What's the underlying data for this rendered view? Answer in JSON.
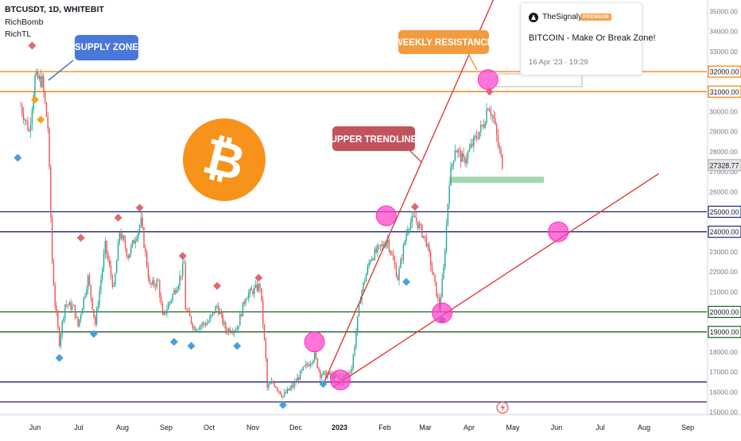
{
  "header": {
    "symbol": "BTCUSDT, 1D, WHITEBIT",
    "indicator_1": "RichBomb",
    "indicator_2": "RichTL"
  },
  "idea_card": {
    "author": "TheSignalyst",
    "badge": "PREMIUM",
    "title": "BITCOIN - Make Or Break Zone!",
    "date": "16 Apr '23 · 19:29"
  },
  "annotations": {
    "supply_zone": "SUPPLY ZONE",
    "weekly_resistance": "WEEKLY RESISTANCE",
    "upper_trendline": "UPPER TRENDLINE",
    "bitcoin_logo_glyph": "₿"
  },
  "colors": {
    "up_candle": "#26a69a",
    "down_candle": "#ef5350",
    "orange_level": "#f57c00",
    "blue_level": "#1a237e",
    "green_level": "#1b5e20",
    "trendline": "#e53935",
    "touch_circle": "#ff40c8",
    "supply_label_bg": "#4a78d8",
    "resistance_label_bg": "#f39b3e",
    "trendline_label_bg": "#c2535c",
    "bitcoin_orange": "#f7931a",
    "support_box": "#8fd19e"
  },
  "chart_data": {
    "type": "candlestick",
    "title": "BTCUSDT, 1D, WHITEBIT",
    "x_axis_labels": [
      "Jun",
      "Jul",
      "Aug",
      "Sep",
      "Oct",
      "Nov",
      "Dec",
      "2023",
      "Feb",
      "Mar",
      "Apr",
      "May",
      "Jun",
      "Jul",
      "Aug",
      "Sep"
    ],
    "y_axis_labels": [
      15000,
      16000,
      17000,
      18000,
      19000,
      20000,
      21000,
      22000,
      23000,
      24000,
      25000,
      26000,
      27000,
      28000,
      29000,
      30000,
      31000,
      32000,
      33000,
      34000,
      35000
    ],
    "ylim": [
      15000,
      35400
    ],
    "last_price": 27328.77,
    "horizontal_levels": [
      {
        "price": 32000,
        "color": "orange"
      },
      {
        "price": 31000,
        "color": "orange"
      },
      {
        "price": 25000,
        "color": "blue"
      },
      {
        "price": 24000,
        "color": "blue"
      },
      {
        "price": 20000,
        "color": "green"
      },
      {
        "price": 19000,
        "color": "green"
      },
      {
        "price": 16500,
        "color": "blue"
      },
      {
        "price": 15500,
        "color": "blue"
      }
    ],
    "trendlines": [
      {
        "name": "upper",
        "from": {
          "date": "2022-12-20",
          "price": 16550
        },
        "to": {
          "date": "2023-05-01",
          "price": 37900
        }
      },
      {
        "name": "lower",
        "from": {
          "date": "2022-12-26",
          "price": 16250
        },
        "to": {
          "date": "2023-08-10",
          "price": 26900
        }
      }
    ],
    "support_zone": {
      "date_from": "2023-03-17",
      "date_to": "2023-05-22",
      "price_low": 26450,
      "price_high": 26750
    },
    "touch_points": [
      {
        "date": "2023-04-13",
        "price": 31600
      },
      {
        "date": "2023-02-01",
        "price": 24800
      },
      {
        "date": "2022-12-13",
        "price": 18500
      },
      {
        "date": "2022-12-31",
        "price": 16600
      },
      {
        "date": "2023-03-12",
        "price": 19950
      },
      {
        "date": "2023-06-01",
        "price": 24000
      }
    ],
    "waypoints": [
      [
        "2022-05-22",
        30300
      ],
      [
        "2022-05-28",
        29000
      ],
      [
        "2022-06-01",
        31700
      ],
      [
        "2022-06-06",
        31500
      ],
      [
        "2022-06-10",
        29200
      ],
      [
        "2022-06-13",
        22500
      ],
      [
        "2022-06-15",
        20400
      ],
      [
        "2022-06-18",
        18500
      ],
      [
        "2022-06-22",
        20400
      ],
      [
        "2022-06-28",
        20200
      ],
      [
        "2022-07-01",
        19300
      ],
      [
        "2022-07-08",
        21700
      ],
      [
        "2022-07-13",
        19400
      ],
      [
        "2022-07-20",
        23300
      ],
      [
        "2022-07-26",
        21100
      ],
      [
        "2022-07-30",
        24000
      ],
      [
        "2022-08-05",
        22800
      ],
      [
        "2022-08-14",
        24500
      ],
      [
        "2022-08-20",
        21300
      ],
      [
        "2022-08-26",
        21500
      ],
      [
        "2022-08-29",
        19700
      ],
      [
        "2022-09-09",
        21500
      ],
      [
        "2022-09-13",
        22400
      ],
      [
        "2022-09-14",
        20200
      ],
      [
        "2022-09-20",
        19200
      ],
      [
        "2022-09-30",
        19500
      ],
      [
        "2022-10-06",
        20300
      ],
      [
        "2022-10-12",
        19100
      ],
      [
        "2022-10-20",
        19200
      ],
      [
        "2022-10-26",
        20800
      ],
      [
        "2022-11-05",
        21300
      ],
      [
        "2022-11-09",
        17600
      ],
      [
        "2022-11-10",
        16200
      ],
      [
        "2022-11-14",
        16500
      ],
      [
        "2022-11-21",
        15800
      ],
      [
        "2022-11-28",
        16300
      ],
      [
        "2022-12-05",
        17100
      ],
      [
        "2022-12-13",
        17800
      ],
      [
        "2022-12-17",
        16900
      ],
      [
        "2022-12-25",
        16800
      ],
      [
        "2023-01-01",
        16600
      ],
      [
        "2023-01-08",
        17200
      ],
      [
        "2023-01-14",
        20800
      ],
      [
        "2023-01-21",
        22700
      ],
      [
        "2023-01-28",
        23200
      ],
      [
        "2023-02-02",
        23600
      ],
      [
        "2023-02-09",
        21700
      ],
      [
        "2023-02-16",
        24300
      ],
      [
        "2023-02-21",
        24700
      ],
      [
        "2023-03-01",
        23500
      ],
      [
        "2023-03-10",
        20200
      ],
      [
        "2023-03-13",
        22100
      ],
      [
        "2023-03-17",
        26600
      ],
      [
        "2023-03-21",
        28200
      ],
      [
        "2023-03-27",
        27500
      ],
      [
        "2023-04-03",
        28500
      ],
      [
        "2023-04-10",
        29400
      ],
      [
        "2023-04-13",
        30400
      ],
      [
        "2023-04-17",
        29600
      ],
      [
        "2023-04-20",
        28300
      ],
      [
        "2023-04-23",
        27400
      ]
    ],
    "signal_markers": [
      {
        "date": "2022-05-20",
        "price": 27700,
        "kind": "buy"
      },
      {
        "date": "2022-05-30",
        "price": 33300,
        "kind": "sell"
      },
      {
        "date": "2022-06-01",
        "price": 30600,
        "kind": "sell-orange"
      },
      {
        "date": "2022-06-05",
        "price": 29600,
        "kind": "sell-orange"
      },
      {
        "date": "2022-06-18",
        "price": 17700,
        "kind": "buy"
      },
      {
        "date": "2022-07-03",
        "price": 23700,
        "kind": "sell"
      },
      {
        "date": "2022-07-12",
        "price": 18900,
        "kind": "buy"
      },
      {
        "date": "2022-07-29",
        "price": 24700,
        "kind": "sell"
      },
      {
        "date": "2022-08-13",
        "price": 25200,
        "kind": "sell"
      },
      {
        "date": "2022-09-06",
        "price": 18500,
        "kind": "buy"
      },
      {
        "date": "2022-09-12",
        "price": 22800,
        "kind": "sell"
      },
      {
        "date": "2022-09-18",
        "price": 18300,
        "kind": "buy"
      },
      {
        "date": "2022-10-06",
        "price": 21300,
        "kind": "sell"
      },
      {
        "date": "2022-10-20",
        "price": 18300,
        "kind": "buy"
      },
      {
        "date": "2022-11-04",
        "price": 21700,
        "kind": "sell"
      },
      {
        "date": "2022-11-21",
        "price": 15350,
        "kind": "buy"
      },
      {
        "date": "2022-12-19",
        "price": 16400,
        "kind": "buy"
      },
      {
        "date": "2023-02-21",
        "price": 25250,
        "kind": "sell"
      },
      {
        "date": "2023-02-15",
        "price": 21500,
        "kind": "buy"
      },
      {
        "date": "2023-03-12",
        "price": 19600,
        "kind": "buy"
      },
      {
        "date": "2023-04-14",
        "price": 31000,
        "kind": "sell"
      }
    ],
    "grid": false,
    "legend": "none"
  }
}
